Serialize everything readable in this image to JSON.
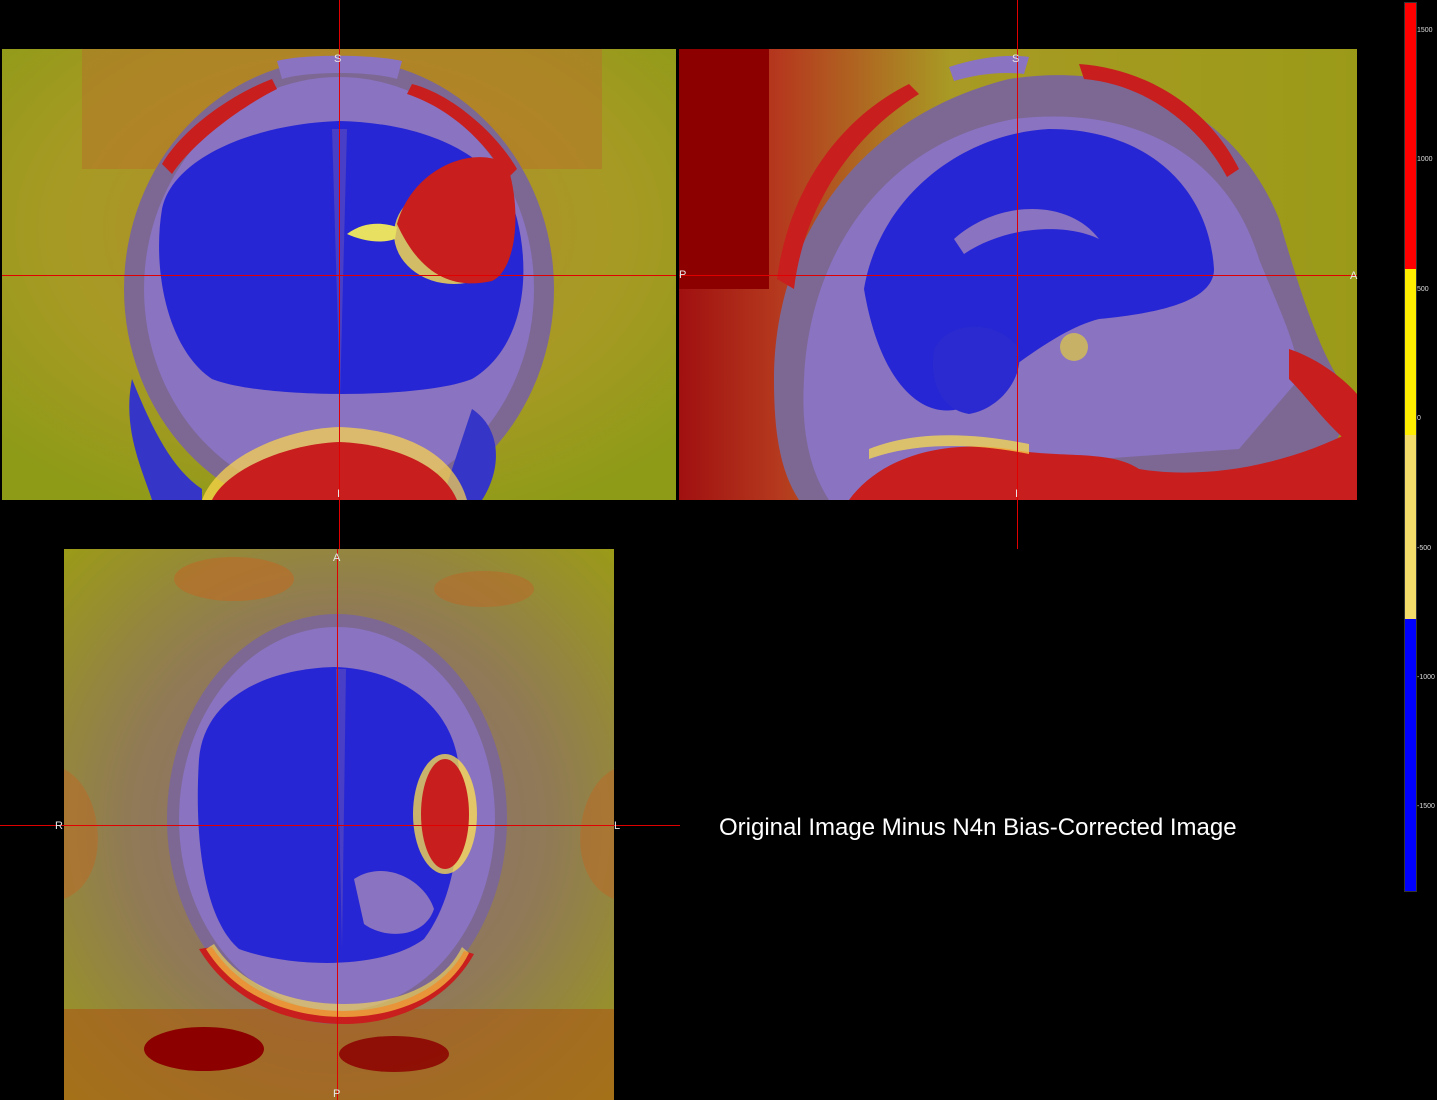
{
  "views": {
    "coronal": {
      "top": "S",
      "bottom": "I"
    },
    "sagittal": {
      "top": "S",
      "bottom": "I",
      "left": "P",
      "right": "A"
    },
    "axial": {
      "top": "A",
      "bottom": "P",
      "left": "R",
      "right": "L"
    }
  },
  "caption": "Original Image Minus N4n Bias-Corrected Image",
  "colorbar": {
    "ticks": [
      "1500",
      "1000",
      "500",
      "0",
      "-500",
      "-1000",
      "-1500"
    ],
    "colors": {
      "high": "#ff0000",
      "mid": "#ffee00",
      "midlow": "#f4dc6a",
      "low": "#0000ff"
    }
  },
  "colors": {
    "background_map": "#9a9a1c",
    "tissue_overlay": "#7d5fb0",
    "brain_overlay": "#2a2ad0",
    "hot_region": "#c81e1e",
    "crosshair": "#e00000"
  }
}
